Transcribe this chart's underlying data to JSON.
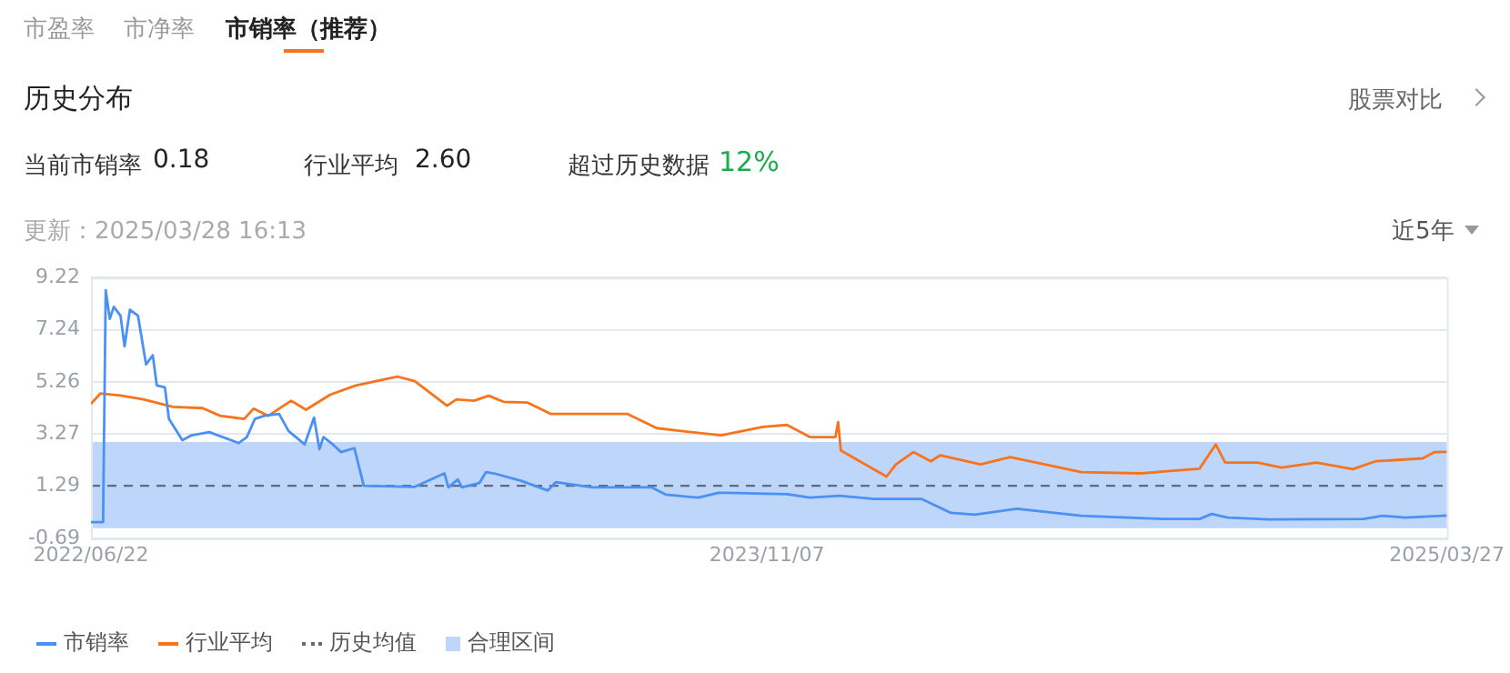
{
  "chart_data": {
    "type": "line",
    "title": "历史分布",
    "annotations": [
      "市盈率",
      "市净率",
      "市销率（推荐）",
      "股票对比",
      "当前市销率",
      "0.18",
      "行业平均",
      "2.60",
      "超过历史数据",
      "12%",
      "更新：2025/03/28 16:13",
      "近5年"
    ],
    "x": [
      "2022-06-22",
      "2022-07-01",
      "2022-07-03",
      "2022-07-06",
      "2022-07-09",
      "2022-07-14",
      "2022-07-17",
      "2022-07-21",
      "2022-07-27",
      "2022-08-02",
      "2022-08-07",
      "2022-08-10",
      "2022-08-16",
      "2022-08-19",
      "2022-08-29",
      "2022-09-05",
      "2022-09-18",
      "2022-10-10",
      "2022-10-16",
      "2022-10-22",
      "2022-10-29",
      "2022-11-09",
      "2022-11-16",
      "2022-11-28",
      "2022-12-05",
      "2022-12-09",
      "2022-12-12",
      "2022-12-19",
      "2022-12-25",
      "2023-01-04",
      "2023-01-11",
      "2023-02-18",
      "2023-03-12",
      "2023-03-15",
      "2023-03-22",
      "2023-03-25",
      "2023-04-07",
      "2023-04-12",
      "2023-04-18",
      "2023-05-08",
      "2023-05-28",
      "2023-06-03",
      "2023-06-30",
      "2023-08-13",
      "2023-08-24",
      "2023-09-17",
      "2023-10-02",
      "2023-10-09",
      "2023-11-22",
      "2023-12-09",
      "2023-12-31",
      "2024-01-26",
      "2024-03-01",
      "2024-03-23",
      "2024-04-10",
      "2024-05-11",
      "2024-06-28",
      "2024-08-28",
      "2024-09-24",
      "2024-10-03",
      "2024-10-15",
      "2024-11-15",
      "2025-01-24",
      "2025-02-07",
      "2025-02-24",
      "2025-03-27"
    ],
    "series": [
      {
        "name": "市销率",
        "color": "#4b91f5",
        "values": [
          -0.07,
          -0.07,
          8.74,
          7.65,
          8.11,
          7.77,
          6.61,
          8.0,
          7.77,
          5.92,
          6.27,
          5.12,
          5.05,
          3.85,
          3.04,
          3.23,
          3.35,
          2.93,
          3.16,
          3.85,
          3.97,
          4.04,
          3.39,
          2.88,
          3.9,
          2.7,
          3.16,
          2.88,
          2.59,
          2.74,
          1.31,
          1.27,
          1.78,
          1.25,
          1.55,
          1.25,
          1.41,
          1.83,
          1.78,
          1.5,
          1.13,
          1.45,
          1.25,
          1.25,
          0.97,
          0.86,
          1.04,
          1.04,
          0.99,
          0.86,
          0.93,
          0.81,
          0.81,
          0.28,
          0.21,
          0.44,
          0.17,
          0.05,
          0.05,
          0.24,
          0.1,
          0.03,
          0.05,
          0.17,
          0.1,
          0.18
        ]
      },
      {
        "name": "行业平均",
        "color": "#f7741c",
        "x": [
          "2022-06-22",
          "2022-06-29",
          "2022-07-14",
          "2022-07-31",
          "2022-08-22",
          "2022-09-13",
          "2022-09-26",
          "2022-10-14",
          "2022-10-21",
          "2022-11-01",
          "2022-11-18",
          "2022-11-29",
          "2022-12-17",
          "2023-01-05",
          "2023-02-05",
          "2023-02-18",
          "2023-03-14",
          "2023-03-21",
          "2023-04-03",
          "2023-04-14",
          "2023-04-25",
          "2023-05-13",
          "2023-05-30",
          "2023-06-30",
          "2023-07-26",
          "2023-08-17",
          "2023-09-04",
          "2023-10-04",
          "2023-11-04",
          "2023-11-22",
          "2023-12-09",
          "2023-12-28",
          "2023-12-30",
          "2024-01-01",
          "2024-02-04",
          "2024-02-11",
          "2024-02-24",
          "2024-03-08",
          "2024-03-15",
          "2024-04-14",
          "2024-05-06",
          "2024-06-28",
          "2024-08-11",
          "2024-09-24",
          "2024-10-06",
          "2024-10-13",
          "2024-11-06",
          "2024-11-24",
          "2024-12-20",
          "2025-01-16",
          "2025-02-02",
          "2025-03-09",
          "2025-03-18",
          "2025-03-27"
        ],
        "values": [
          4.42,
          4.82,
          4.74,
          4.59,
          4.31,
          4.26,
          3.97,
          3.85,
          4.24,
          3.97,
          4.54,
          4.2,
          4.77,
          5.12,
          5.46,
          5.28,
          4.35,
          4.59,
          4.54,
          4.73,
          4.5,
          4.47,
          4.04,
          4.04,
          4.04,
          3.5,
          3.39,
          3.23,
          3.55,
          3.62,
          3.16,
          3.16,
          3.73,
          2.65,
          1.66,
          2.12,
          2.59,
          2.24,
          2.47,
          2.12,
          2.4,
          1.83,
          1.78,
          1.96,
          2.88,
          2.19,
          2.19,
          2.0,
          2.19,
          1.94,
          2.24,
          2.35,
          2.59,
          2.6
        ]
      }
    ],
    "xlim": [
      "2022-06-22",
      "2025-03-27"
    ],
    "xticks": [
      {
        "value": "2022-06-22",
        "label": "2022/06/22"
      },
      {
        "value": "2023-11-07",
        "label": "2023/11/07"
      },
      {
        "value": "2025-03-27",
        "label": "2025/03/27"
      }
    ],
    "ylim": [
      -0.69,
      9.22
    ],
    "yticks": [
      -0.69,
      1.29,
      3.27,
      5.26,
      7.24,
      9.22
    ],
    "ref_lines": [
      {
        "axis": "y",
        "value": 1.31,
        "label": "历史均值",
        "color": "#5f6b7d",
        "line_style": "dashed"
      }
    ],
    "bands": [
      {
        "axis": "y",
        "from": -0.3,
        "to": 2.97,
        "label": "合理区间",
        "color": "#bed6fa"
      }
    ],
    "grid": "y",
    "legend": "bottom left",
    "marker": "none",
    "line_style": "solid"
  }
}
